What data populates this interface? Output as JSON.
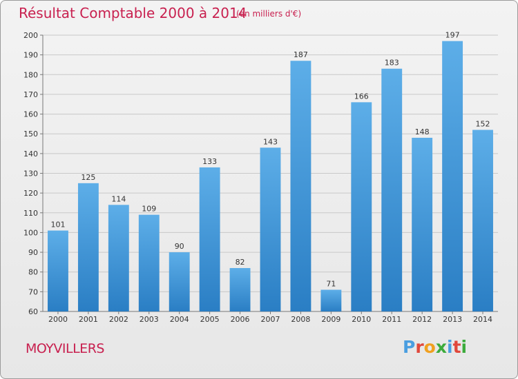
{
  "header": {
    "title": "Résultat Comptable 2000 à 2014",
    "subtitle": "(en milliers d'€)"
  },
  "footer": {
    "place": "MOYVILLERS",
    "logo_letters": [
      "P",
      "r",
      "o",
      "x",
      "i",
      "t",
      "i"
    ]
  },
  "colors": {
    "title": "#c8204f",
    "bar_top": "#5daee8",
    "bar_bottom": "#2a7ec4",
    "logo": [
      "#4a9ee0",
      "#e0483c",
      "#f0a020",
      "#3cab3c",
      "#4a9ee0",
      "#e0483c",
      "#3cab3c"
    ]
  },
  "chart_data": {
    "type": "bar",
    "categories": [
      "2000",
      "2001",
      "2002",
      "2003",
      "2004",
      "2005",
      "2006",
      "2007",
      "2008",
      "2009",
      "2010",
      "2011",
      "2012",
      "2013",
      "2014"
    ],
    "values": [
      101,
      125,
      114,
      109,
      90,
      133,
      82,
      143,
      187,
      71,
      166,
      183,
      148,
      197,
      152
    ],
    "value_labels": [
      "101",
      "125",
      "114",
      "109",
      "90",
      "133",
      "82",
      "143",
      "187",
      "71",
      "166",
      "183",
      "148",
      "197",
      "152"
    ],
    "yticks": [
      "60",
      "70",
      "80",
      "90",
      "100",
      "110",
      "120",
      "130",
      "140",
      "150",
      "160",
      "170",
      "180",
      "190",
      "200"
    ],
    "ylim": [
      60,
      200
    ],
    "grid": true
  }
}
